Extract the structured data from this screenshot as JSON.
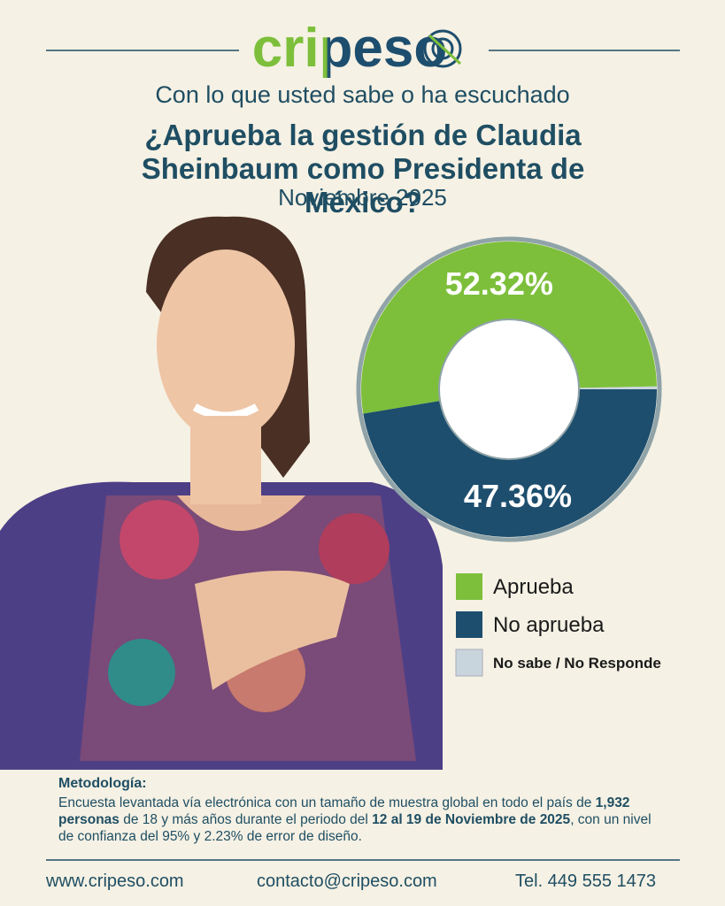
{
  "brand": "cripeso",
  "chart_data": {
    "type": "donut",
    "kicker": "Con lo que usted sabe o ha escuchado",
    "title": "¿Aprueba la gestión de Claudia Sheinbaum como Presidenta de México?",
    "subtitle": "Noviembre 2025",
    "categories": [
      "Aprueba",
      "No aprueba",
      "No sabe / No Responde"
    ],
    "values": [
      52.32,
      47.36,
      0.32
    ],
    "value_labels": [
      "52.32%",
      "47.36%",
      null
    ],
    "colors": [
      "#7dbf3b",
      "#1d4e6e",
      "#c8d5dd"
    ]
  },
  "methodology": {
    "heading": "Metodología:",
    "parts": [
      {
        "text": "Encuesta levantada vía electrónica con un tamaño de muestra global en todo el país de",
        "bold": false
      },
      {
        "text": "1,932 personas",
        "bold": true
      },
      {
        "text": "de 18 y más años durante el periodo del",
        "bold": false
      },
      {
        "text": "12 al 19 de Noviembre de 2025",
        "bold": true
      },
      {
        "text": ", con un nivel de confianza del 95% y 2.23% de error de diseño.",
        "bold": false
      }
    ]
  },
  "footer": {
    "website": "www.cripeso.com",
    "email": "contacto@cripeso.com",
    "phone": "Tel. 449 555 1473"
  }
}
